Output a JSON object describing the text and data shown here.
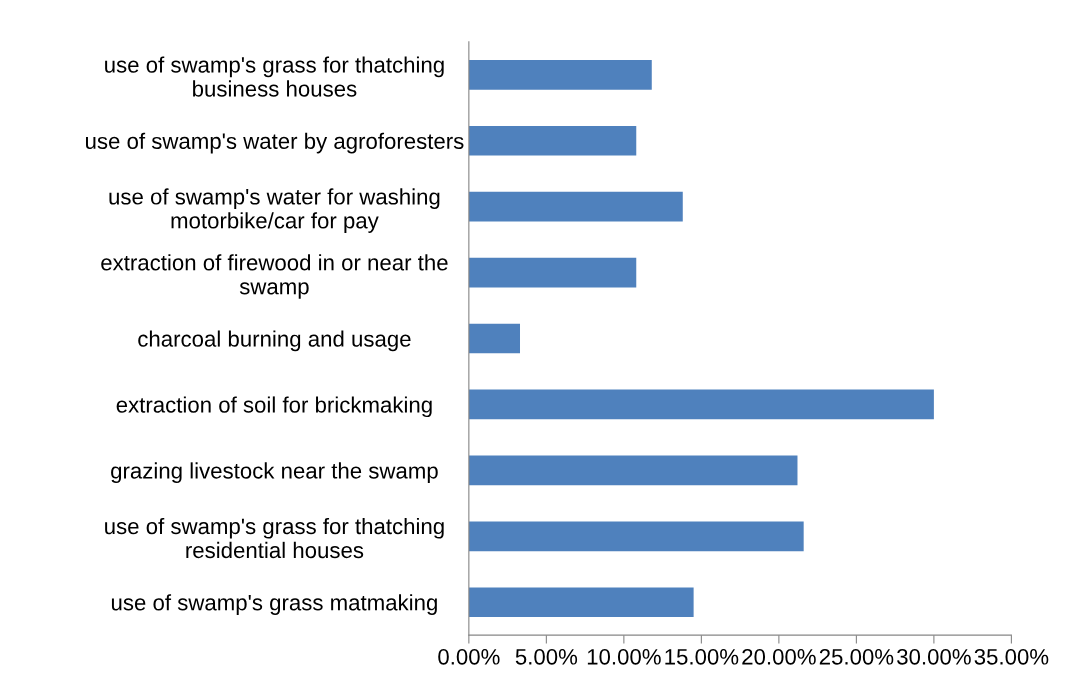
{
  "chart_data": {
    "type": "bar",
    "orientation": "horizontal",
    "categories": [
      "use of swamp's grass for thatching\nbusiness houses",
      "use of swamp's water by agroforesters",
      "use of swamp's water for washing\nmotorbike/car for pay",
      "extraction of firewood in or near the\nswamp",
      "charcoal burning and usage",
      "extraction of soil for brickmaking",
      "grazing livestock near the swamp",
      "use of swamp's grass for thatching\nresidential houses",
      "use of swamp's grass matmaking"
    ],
    "values": [
      11.8,
      10.8,
      13.8,
      10.8,
      3.3,
      30.0,
      21.2,
      21.6,
      14.5
    ],
    "color": "#4f81bd",
    "xlim": [
      0,
      35
    ],
    "xticks": [
      {
        "value": 0,
        "label": "0.00%"
      },
      {
        "value": 5,
        "label": "5.00%"
      },
      {
        "value": 10,
        "label": "10.00%"
      },
      {
        "value": 15,
        "label": "15.00%"
      },
      {
        "value": 20,
        "label": "20.00%"
      },
      {
        "value": 25,
        "label": "25.00%"
      },
      {
        "value": 30,
        "label": "30.00%"
      },
      {
        "value": 35,
        "label": "35.00%"
      }
    ],
    "grid": false,
    "legend": false
  }
}
